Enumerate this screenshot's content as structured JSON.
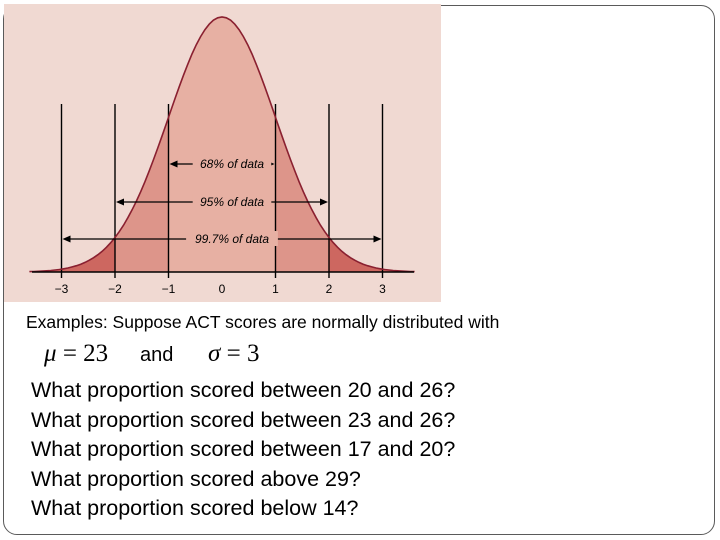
{
  "figure": {
    "background": "#f0d9d2",
    "tick_labels": [
      "−3",
      "−2",
      "−1",
      "0",
      "1",
      "2",
      "3"
    ],
    "brackets": [
      {
        "label": "68% of data",
        "sigma": 1
      },
      {
        "label": "95% of data",
        "sigma": 2
      },
      {
        "label": "99.7% of data",
        "sigma": 3
      }
    ],
    "colors": {
      "band1": "#e7b0a3",
      "band2": "#dd958a",
      "band3": "#cd6760",
      "curve": "#8a2030"
    }
  },
  "slide": {
    "intro": "Examples: Suppose ACT scores are normally distributed with",
    "mu_symbol": "μ",
    "mu_value": " = 23",
    "and_word": "and",
    "sigma_symbol": "σ",
    "sigma_value": " = 3",
    "questions": [
      "What proportion scored between 20 and 26?",
      "What proportion scored between 23 and 26?",
      "What proportion scored between 17 and 20?",
      "What proportion scored above 29?",
      "What proportion scored below 14?"
    ]
  }
}
